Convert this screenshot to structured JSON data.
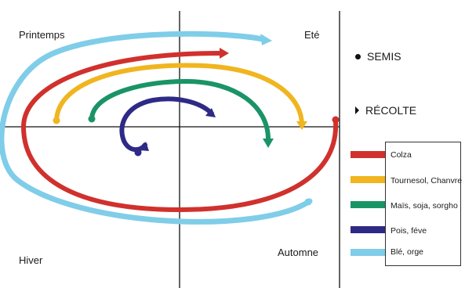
{
  "seasons": {
    "spring": "Printemps",
    "summer": "Eté",
    "autumn": "Automne",
    "winter": "Hiver"
  },
  "key": {
    "sowing": {
      "label": "SEMIS",
      "icon": "dot-icon"
    },
    "harvest": {
      "label": "RÉCOLTE",
      "icon": "arrowhead-icon"
    }
  },
  "crops": [
    {
      "name": "Colza",
      "color": "#d0312d"
    },
    {
      "name": "Tournesol, Chanvre",
      "color": "#f0b51f"
    },
    {
      "name": "Maïs, soja, sorgho",
      "color": "#1a9466"
    },
    {
      "name": "Pois, féve",
      "color": "#2e2a86"
    },
    {
      "name": "Blé, orge",
      "color": "#7fcde8"
    }
  ]
}
